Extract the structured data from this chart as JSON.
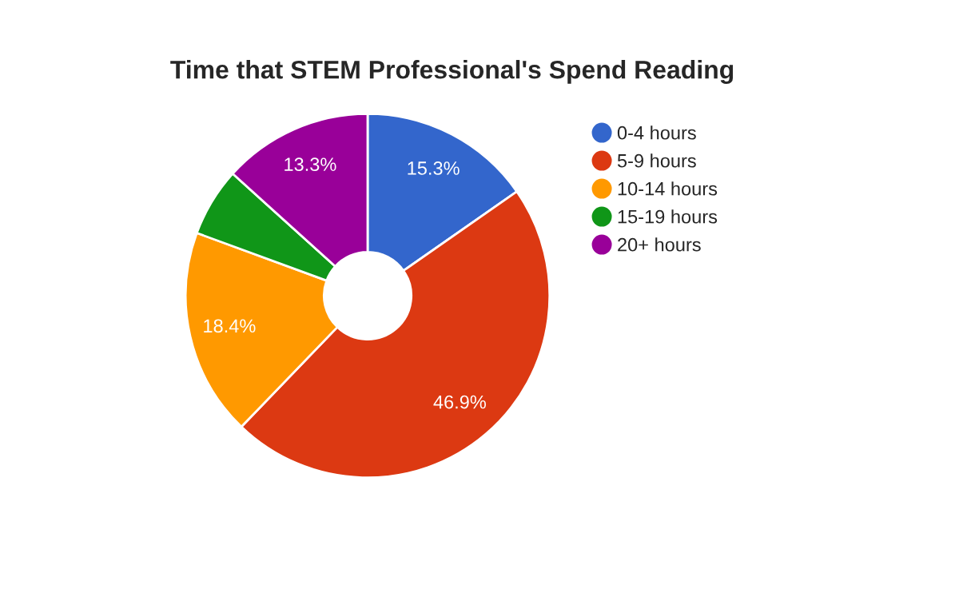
{
  "chart_data": {
    "type": "donut",
    "title": "Time that STEM Professional's Spend Reading",
    "categories": [
      "0-4 hours",
      "5-9 hours",
      "10-14 hours",
      "15-19 hours",
      "20+ hours"
    ],
    "values": [
      15.3,
      46.9,
      18.4,
      6.1,
      13.3
    ],
    "colors": [
      "#3366cc",
      "#dc3912",
      "#ff9900",
      "#109618",
      "#990099"
    ],
    "value_labels": [
      "15.3%",
      "46.9%",
      "18.4%",
      null,
      "13.3%"
    ],
    "legend": "right"
  }
}
